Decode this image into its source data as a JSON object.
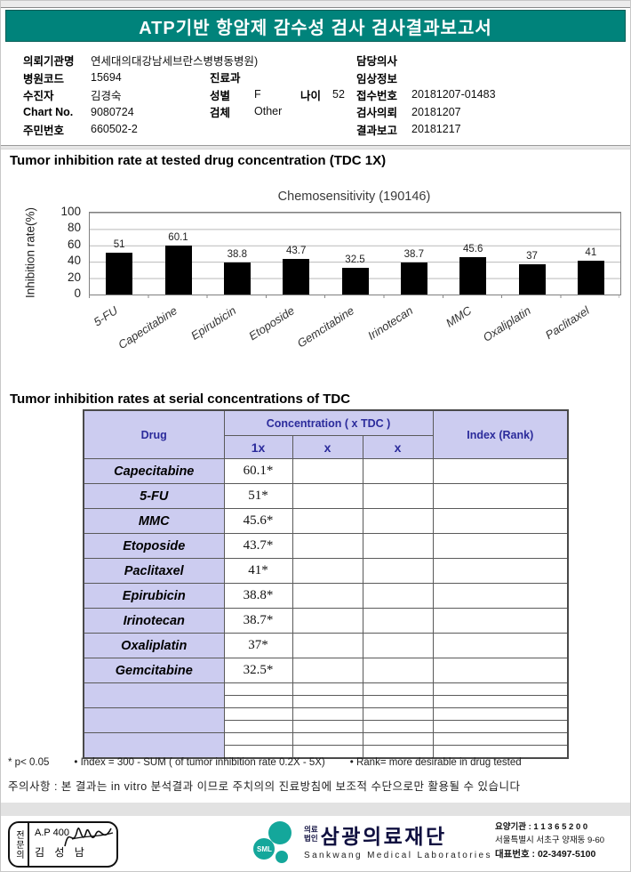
{
  "page": {
    "title_bar": "ATP기반 항암제 감수성 검사 검사결과보고서"
  },
  "patient_info": {
    "left": [
      {
        "label": "의뢰기관명",
        "value": "연세대의대강남세브란스병병동병원)"
      },
      {
        "label": "병원코드",
        "value": "15694"
      },
      {
        "label": "수진자",
        "value": "김경숙"
      },
      {
        "label": "Chart No.",
        "value": "9080724"
      },
      {
        "label": "주민번호",
        "value": "660502-2"
      }
    ],
    "middle": {
      "dept_label": "진료과",
      "dept_value": "",
      "sex_label": "성별",
      "sex_value": "F",
      "age_label": "나이",
      "age_value": "52",
      "specimen_label": "검체",
      "specimen_value": "Other"
    },
    "right": [
      {
        "label": "담당의사",
        "value": ""
      },
      {
        "label": "임상정보",
        "value": ""
      },
      {
        "label": "접수번호",
        "value": "20181207-01483"
      },
      {
        "label": "검사의뢰",
        "value": "20181207"
      },
      {
        "label": "결과보고",
        "value": "20181217"
      }
    ]
  },
  "section1_title": "Tumor inhibition rate at tested drug concentration (TDC 1X)",
  "chart_data": {
    "type": "bar",
    "title": "Chemosensitivity (190146)",
    "ylabel": "Inhibition rate(%)",
    "xlabel": "",
    "ylim": [
      0,
      100
    ],
    "yticks": [
      100,
      80,
      60,
      40,
      20,
      0
    ],
    "grid": true,
    "legend_position": "none",
    "categories": [
      "5-FU",
      "Capecitabine",
      "Epirubicin",
      "Etoposide",
      "Gemcitabine",
      "Irinotecan",
      "MMC",
      "Oxaliplatin",
      "Paclitaxel"
    ],
    "values": [
      51,
      60.1,
      38.8,
      43.7,
      32.5,
      38.7,
      45.6,
      37,
      41
    ],
    "bar_color": "#000000"
  },
  "section2_title": "Tumor inhibition rates at serial concentrations of TDC",
  "table": {
    "header": {
      "drug": "Drug",
      "concentration": "Concentration ( x TDC )",
      "c1": "1x",
      "c2": "x",
      "c3": "x",
      "index": "Index (Rank)"
    },
    "rows": [
      {
        "drug": "Capecitabine",
        "v1": "60.1*",
        "v2": "",
        "v3": "",
        "index": ""
      },
      {
        "drug": "5-FU",
        "v1": "51*",
        "v2": "",
        "v3": "",
        "index": ""
      },
      {
        "drug": "MMC",
        "v1": "45.6*",
        "v2": "",
        "v3": "",
        "index": ""
      },
      {
        "drug": "Etoposide",
        "v1": "43.7*",
        "v2": "",
        "v3": "",
        "index": ""
      },
      {
        "drug": "Paclitaxel",
        "v1": "41*",
        "v2": "",
        "v3": "",
        "index": ""
      },
      {
        "drug": "Epirubicin",
        "v1": "38.8*",
        "v2": "",
        "v3": "",
        "index": ""
      },
      {
        "drug": "Irinotecan",
        "v1": "38.7*",
        "v2": "",
        "v3": "",
        "index": ""
      },
      {
        "drug": "Oxaliplatin",
        "v1": "37*",
        "v2": "",
        "v3": "",
        "index": ""
      },
      {
        "drug": "Gemcitabine",
        "v1": "32.5*",
        "v2": "",
        "v3": "",
        "index": ""
      }
    ],
    "empty_rows": 3
  },
  "footnotes": {
    "parts": [
      "* p< 0.05",
      "• Index = 300 - SUM ( of tumor inhibition rate 0.2X  -  5X)",
      "• Rank= more desirable in drug tested"
    ],
    "caution": "주의사항 : 본 결과는 in vitro 분석결과 이므로 주치의의 진료방침에 보조적 수단으로만 활용될 수 있습니다"
  },
  "footer": {
    "stamp": {
      "side": "전문의",
      "line1": "A.P 400",
      "line2": "김 성 남"
    },
    "logo": {
      "mark": "SML",
      "prefix_top": "의료",
      "prefix_bottom": "법인",
      "name": "삼광의료재단",
      "name_en": "Sankwang Medical Laboratories"
    },
    "contact": [
      "요양기관 : 1 1 3 6 5 2 0 0",
      "서울특별시 서초구 양재동 9-60",
      "대표번호 : 02-3497-5100"
    ]
  },
  "colors": {
    "header_teal": "#00837b",
    "table_lavender": "#ccccf0",
    "table_navy": "#2b2b9b",
    "bar_black": "#000000",
    "logo_teal": "#14a79b"
  }
}
